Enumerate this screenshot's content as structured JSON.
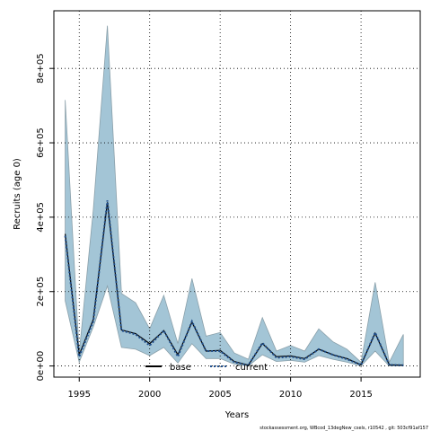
{
  "chart_data": {
    "type": "line",
    "xlabel": "Years",
    "ylabel": "Recruits (age 0)",
    "xlim": [
      1993.2,
      2019.2
    ],
    "ylim": [
      -30000,
      955000
    ],
    "x_ticks": [
      1995,
      2000,
      2005,
      2010,
      2015
    ],
    "x_tick_labels": [
      "1995",
      "2000",
      "2005",
      "2010",
      "2015"
    ],
    "y_ticks": [
      0,
      200000,
      400000,
      600000,
      800000
    ],
    "y_tick_labels": [
      "0e+00",
      "2e+05",
      "4e+05",
      "6e+05",
      "8e+05"
    ],
    "grid": true,
    "grid_style": "dotted",
    "legend_placement": "bottom-center",
    "colors": {
      "band_fill": "#a3c5d6",
      "band_edge": "#8aa0aa",
      "base_line": "#000000",
      "current_line": "#1f4e8c"
    },
    "x": [
      1994,
      1995,
      1996,
      1997,
      1998,
      1999,
      2000,
      2001,
      2002,
      2003,
      2004,
      2005,
      2006,
      2007,
      2008,
      2009,
      2010,
      2011,
      2012,
      2013,
      2014,
      2015,
      2016,
      2017,
      2018
    ],
    "series": [
      {
        "name": "base",
        "style": "solid",
        "values": [
          355000,
          30000,
          125000,
          440000,
          97000,
          87000,
          60000,
          95000,
          30000,
          118000,
          40000,
          42000,
          12000,
          2000,
          60000,
          25000,
          27000,
          20000,
          45000,
          30000,
          20000,
          3000,
          88000,
          3000,
          2000
        ]
      },
      {
        "name": "current",
        "style": "dotted",
        "values": [
          350000,
          25000,
          120000,
          445000,
          95000,
          85000,
          55000,
          95000,
          25000,
          120000,
          40000,
          40000,
          10000,
          2000,
          62000,
          22000,
          25000,
          18000,
          45000,
          30000,
          18000,
          3000,
          90000,
          3000,
          2000
        ]
      }
    ],
    "band": {
      "name": "uncertainty",
      "upper": [
        715000,
        35000,
        420000,
        915000,
        195000,
        170000,
        100000,
        190000,
        60000,
        235000,
        80000,
        90000,
        35000,
        18000,
        130000,
        40000,
        55000,
        40000,
        100000,
        65000,
        45000,
        10000,
        225000,
        10000,
        85000
      ],
      "lower": [
        175000,
        10000,
        105000,
        215000,
        50000,
        45000,
        28000,
        50000,
        8000,
        60000,
        20000,
        20000,
        5000,
        0,
        30000,
        12000,
        15000,
        10000,
        28000,
        18000,
        10000,
        0,
        40000,
        0,
        0
      ]
    }
  },
  "footer": {
    "text": "stockassessment.org,  WBcod_13degNew_csels, r10542 ,  git:  503cf91af157"
  }
}
